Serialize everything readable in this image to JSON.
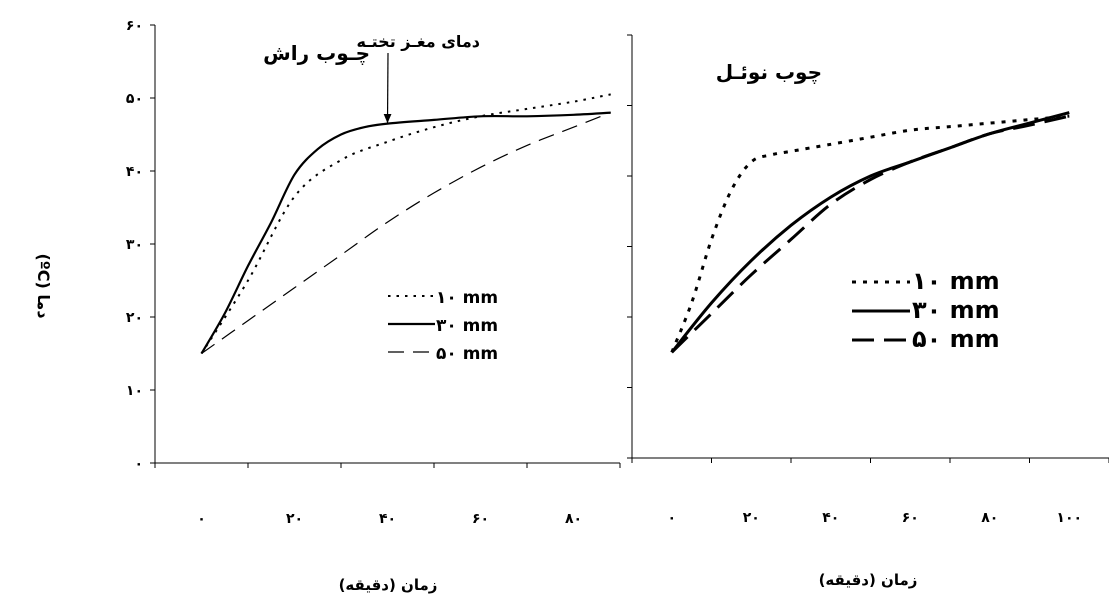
{
  "y_axis_label": "(ºC) دما",
  "chart_data": [
    {
      "type": "line",
      "title": "چـوب راش",
      "annotation": "دمای مغـز تختـه",
      "annotation_target": {
        "x": 40,
        "y": 46
      },
      "xlabel": "زمان (دقیقه)",
      "xlim": [
        -10,
        90
      ],
      "ylim": [
        0,
        60
      ],
      "x_ticks": [
        {
          "value": 0,
          "label": "٠"
        },
        {
          "value": 20,
          "label": "٢٠"
        },
        {
          "value": 40,
          "label": "۴٠"
        },
        {
          "value": 60,
          "label": "۶٠"
        },
        {
          "value": 80,
          "label": "٨٠"
        }
      ],
      "y_ticks": [
        {
          "value": 0,
          "label": "٠"
        },
        {
          "value": 10,
          "label": "١٠"
        },
        {
          "value": 20,
          "label": "٢٠"
        },
        {
          "value": 30,
          "label": "٣٠"
        },
        {
          "value": 40,
          "label": "۴٠"
        },
        {
          "value": 50,
          "label": "۵٠"
        },
        {
          "value": 60,
          "label": "۶٠"
        }
      ],
      "grid": false,
      "legend_position": "right",
      "series": [
        {
          "name": "١٠ mm",
          "style": "dotted",
          "x": [
            0,
            10,
            20,
            30,
            40,
            50,
            60,
            70,
            80,
            88
          ],
          "y": [
            15,
            25,
            36.5,
            41.5,
            44,
            46,
            47.5,
            48.5,
            49.5,
            50.5
          ]
        },
        {
          "name": "٣٠ mm",
          "style": "solid",
          "x": [
            0,
            5,
            10,
            15,
            20,
            25,
            30,
            35,
            40,
            50,
            60,
            70,
            80,
            88
          ],
          "y": [
            15,
            20.5,
            27,
            33,
            39.5,
            43,
            45,
            46,
            46.5,
            47,
            47.5,
            47.5,
            47.7,
            48
          ]
        },
        {
          "name": "۵٠ mm",
          "style": "dashed",
          "x": [
            0,
            10,
            20,
            30,
            40,
            50,
            60,
            70,
            80,
            88
          ],
          "y": [
            15,
            19.5,
            24,
            28.5,
            33,
            37,
            40.5,
            43.5,
            46,
            48
          ]
        }
      ]
    },
    {
      "type": "line",
      "title": "چوب نوئـل",
      "xlabel": "زمان (دقیقه)",
      "xlim": [
        -10,
        110
      ],
      "ylim": [
        0,
        60
      ],
      "x_ticks": [
        {
          "value": 0,
          "label": "٠"
        },
        {
          "value": 20,
          "label": "٢٠"
        },
        {
          "value": 40,
          "label": "۴٠"
        },
        {
          "value": 60,
          "label": "۶٠"
        },
        {
          "value": 80,
          "label": "٨٠"
        },
        {
          "value": 100,
          "label": "١٠٠"
        }
      ],
      "grid": false,
      "legend_position": "right",
      "series": [
        {
          "name": "١٠ mm",
          "style": "dotted",
          "x": [
            0,
            5,
            10,
            15,
            20,
            25,
            30,
            40,
            50,
            60,
            70,
            80,
            90,
            100
          ],
          "y": [
            15,
            22,
            31,
            38,
            42,
            43,
            43.5,
            44.5,
            45.5,
            46.5,
            47,
            47.5,
            48,
            48.5
          ]
        },
        {
          "name": "٣٠ mm",
          "style": "solid",
          "x": [
            0,
            10,
            20,
            30,
            40,
            50,
            60,
            70,
            80,
            90,
            100
          ],
          "y": [
            15,
            22,
            28,
            33,
            37,
            40,
            42,
            44,
            46,
            47.5,
            49
          ]
        },
        {
          "name": "۵٠ mm",
          "style": "dashed",
          "x": [
            0,
            10,
            20,
            30,
            40,
            50,
            60,
            70,
            80,
            90,
            100
          ],
          "y": [
            15,
            20.5,
            26,
            31,
            36,
            39.5,
            42,
            44,
            46,
            47.2,
            48.5
          ]
        }
      ]
    }
  ]
}
